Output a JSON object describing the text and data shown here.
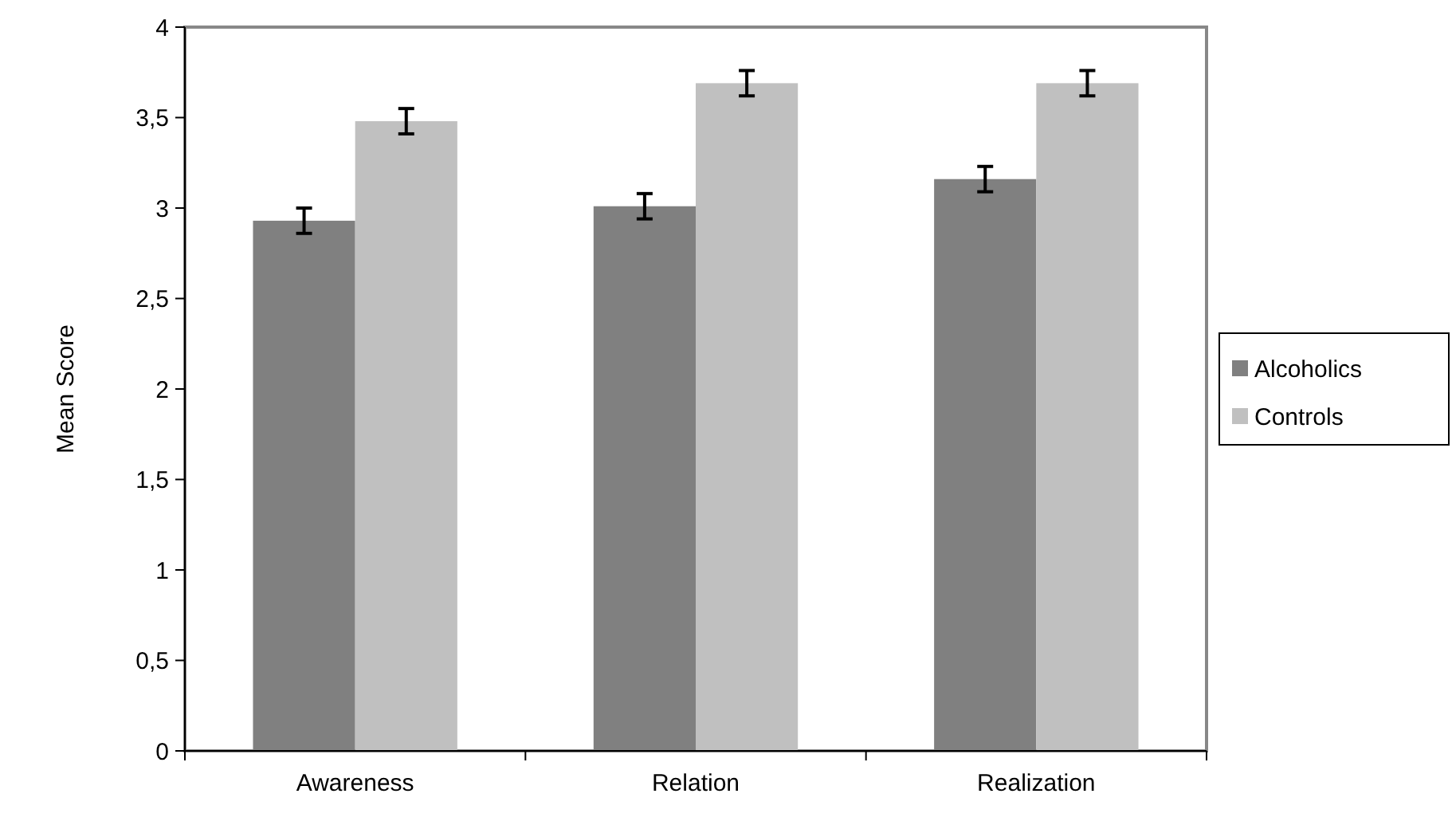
{
  "chart_data": {
    "type": "bar",
    "ylabel": "Mean Score",
    "categories": [
      "Awareness",
      "Relation",
      "Realization"
    ],
    "series": [
      {
        "name": "Alcoholics",
        "color": "#808080",
        "values": [
          2.93,
          3.01,
          3.16
        ],
        "errors": [
          0.07,
          0.07,
          0.07
        ]
      },
      {
        "name": "Controls",
        "color": "#c0c0c0",
        "values": [
          3.48,
          3.69,
          3.69
        ],
        "errors": [
          0.07,
          0.07,
          0.07
        ]
      }
    ],
    "ylim": [
      0,
      4
    ],
    "yticks": [
      0,
      {
        "value": 0.5,
        "label": "0,5"
      },
      1,
      {
        "value": 1.5,
        "label": "1,5"
      },
      2,
      {
        "value": 2.5,
        "label": "2,5"
      },
      3,
      {
        "value": 3.5,
        "label": "3,5"
      },
      4
    ],
    "grid": false,
    "legend": "right"
  }
}
